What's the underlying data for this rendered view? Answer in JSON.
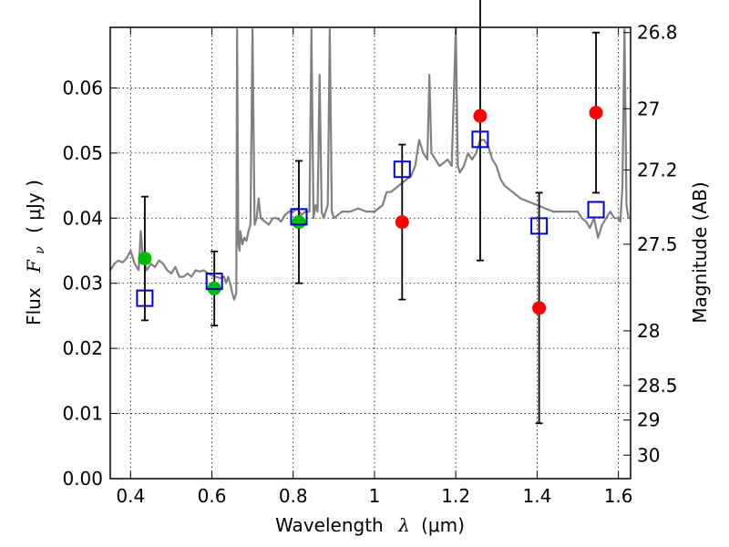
{
  "chart_data": {
    "type": "scatter",
    "xlabel": "Wavelength",
    "xlabel_symbol": "λ",
    "xlabel_unit": "(μm)",
    "ylabel": "Flux",
    "ylabel_symbol": "F",
    "ylabel_subscript": "ν",
    "ylabel_unit": "( μJy )",
    "y2label": "Magnitude (AB)",
    "xlim": [
      0.35,
      1.63
    ],
    "ylim": [
      0.0,
      0.0693
    ],
    "grid": true,
    "x_ticks": [
      0.4,
      0.6,
      0.8,
      1.0,
      1.2,
      1.4,
      1.6
    ],
    "x_tick_labels": [
      "0.4",
      "0.6",
      "0.8",
      "1",
      "1.2",
      "1.4",
      "1.6"
    ],
    "y_ticks": [
      0.0,
      0.01,
      0.02,
      0.03,
      0.04,
      0.05,
      0.06
    ],
    "y_tick_labels": [
      "0.00",
      "0.01",
      "0.02",
      "0.03",
      "0.04",
      "0.05",
      "0.06"
    ],
    "y2_ticks": [
      {
        "label": "26.8",
        "flux": 0.0685
      },
      {
        "label": "27",
        "flux": 0.0568
      },
      {
        "label": "27.2",
        "flux": 0.0474
      },
      {
        "label": "27.5",
        "flux": 0.036
      },
      {
        "label": "28",
        "flux": 0.0227
      },
      {
        "label": "28.5",
        "flux": 0.0143
      },
      {
        "label": "29",
        "flux": 0.009
      },
      {
        "label": "30",
        "flux": 0.0036
      }
    ],
    "colors": {
      "model": "#808080",
      "green": "#00bb00",
      "red": "#ff0000",
      "square": "#0000cc",
      "errorbar": "#000000"
    },
    "series": [
      {
        "marker": "circle",
        "color": "green",
        "points": [
          {
            "x": 0.435,
            "y": 0.0338,
            "err": 0.0095
          },
          {
            "x": 0.606,
            "y": 0.0292,
            "err": 0.0057
          },
          {
            "x": 0.814,
            "y": 0.0394,
            "err": 0.0094
          }
        ]
      },
      {
        "marker": "circle",
        "color": "red",
        "points": [
          {
            "x": 1.068,
            "y": 0.0394,
            "err": 0.0119
          },
          {
            "x": 1.26,
            "y": 0.0557,
            "err": 0.0222
          },
          {
            "x": 1.405,
            "y": 0.0262,
            "err": 0.0177
          },
          {
            "x": 1.545,
            "y": 0.0562,
            "err": 0.0123
          }
        ]
      },
      {
        "marker": "square",
        "color": "square",
        "points": [
          {
            "x": 0.435,
            "y": 0.0277
          },
          {
            "x": 0.606,
            "y": 0.0303
          },
          {
            "x": 0.814,
            "y": 0.0402
          },
          {
            "x": 1.068,
            "y": 0.0475
          },
          {
            "x": 1.26,
            "y": 0.0521
          },
          {
            "x": 1.405,
            "y": 0.0388
          },
          {
            "x": 1.545,
            "y": 0.0413
          }
        ]
      }
    ],
    "model_spectrum": {
      "x": [
        0.35,
        0.36,
        0.37,
        0.38,
        0.39,
        0.4,
        0.41,
        0.42,
        0.425,
        0.43,
        0.435,
        0.44,
        0.45,
        0.46,
        0.47,
        0.48,
        0.49,
        0.5,
        0.51,
        0.52,
        0.53,
        0.54,
        0.55,
        0.56,
        0.57,
        0.58,
        0.59,
        0.6,
        0.61,
        0.62,
        0.63,
        0.635,
        0.64,
        0.645,
        0.65,
        0.655,
        0.66,
        0.662,
        0.665,
        0.668,
        0.67,
        0.675,
        0.68,
        0.685,
        0.69,
        0.695,
        0.7,
        0.705,
        0.71,
        0.715,
        0.72,
        0.73,
        0.74,
        0.75,
        0.76,
        0.77,
        0.78,
        0.79,
        0.8,
        0.81,
        0.82,
        0.83,
        0.84,
        0.845,
        0.85,
        0.855,
        0.86,
        0.865,
        0.87,
        0.875,
        0.88,
        0.885,
        0.89,
        0.895,
        0.9,
        0.92,
        0.94,
        0.96,
        0.98,
        1.0,
        1.02,
        1.03,
        1.04,
        1.05,
        1.06,
        1.07,
        1.08,
        1.09,
        1.1,
        1.11,
        1.12,
        1.13,
        1.135,
        1.14,
        1.15,
        1.16,
        1.18,
        1.19,
        1.2,
        1.205,
        1.21,
        1.22,
        1.23,
        1.24,
        1.25,
        1.26,
        1.27,
        1.28,
        1.29,
        1.3,
        1.31,
        1.32,
        1.34,
        1.36,
        1.38,
        1.4,
        1.42,
        1.44,
        1.46,
        1.48,
        1.5,
        1.51,
        1.52,
        1.53,
        1.54,
        1.55,
        1.56,
        1.57,
        1.58,
        1.59,
        1.6,
        1.605,
        1.61,
        1.615,
        1.62,
        1.625,
        1.63
      ],
      "y": [
        0.032,
        0.033,
        0.0335,
        0.0332,
        0.0338,
        0.035,
        0.033,
        0.032,
        0.038,
        0.034,
        0.033,
        0.032,
        0.033,
        0.0325,
        0.0335,
        0.033,
        0.032,
        0.0315,
        0.0325,
        0.031,
        0.031,
        0.0315,
        0.031,
        0.032,
        0.0318,
        0.032,
        0.0315,
        0.0312,
        0.031,
        0.0308,
        0.031,
        0.03,
        0.031,
        0.03,
        0.0285,
        0.0275,
        0.0285,
        0.069,
        0.036,
        0.035,
        0.038,
        0.036,
        0.037,
        0.0365,
        0.038,
        0.039,
        0.069,
        0.039,
        0.04,
        0.043,
        0.04,
        0.0395,
        0.039,
        0.04,
        0.04,
        0.0395,
        0.0405,
        0.041,
        0.041,
        0.0415,
        0.0405,
        0.041,
        0.041,
        0.069,
        0.04,
        0.042,
        0.041,
        0.062,
        0.041,
        0.04,
        0.041,
        0.042,
        0.069,
        0.041,
        0.04,
        0.041,
        0.041,
        0.0415,
        0.041,
        0.041,
        0.042,
        0.044,
        0.044,
        0.0445,
        0.045,
        0.0455,
        0.046,
        0.0465,
        0.048,
        0.052,
        0.05,
        0.049,
        0.062,
        0.05,
        0.049,
        0.048,
        0.049,
        0.048,
        0.069,
        0.048,
        0.047,
        0.048,
        0.05,
        0.049,
        0.05,
        0.052,
        0.052,
        0.051,
        0.049,
        0.048,
        0.046,
        0.045,
        0.044,
        0.043,
        0.0425,
        0.042,
        0.0415,
        0.041,
        0.041,
        0.041,
        0.041,
        0.04,
        0.0395,
        0.0385,
        0.04,
        0.037,
        0.039,
        0.04,
        0.041,
        0.04,
        0.04,
        0.0395,
        0.045,
        0.069,
        0.042,
        0.04,
        0.04
      ]
    }
  }
}
